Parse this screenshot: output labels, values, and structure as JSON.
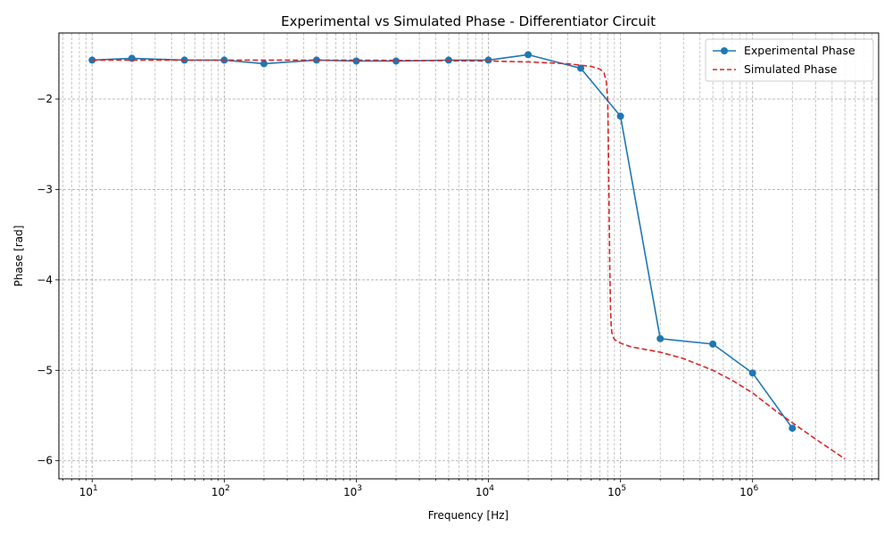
{
  "chart_data": {
    "type": "line",
    "title": "Experimental vs Simulated Phase - Differentiator Circuit",
    "xlabel": "Frequency [Hz]",
    "ylabel": "Phase [rad]",
    "x_scale": "log",
    "xlim": [
      5.6,
      9000000
    ],
    "ylim": [
      -6.2,
      -1.27
    ],
    "x_ticks": [
      {
        "value": 10,
        "base": "10",
        "exp": "1"
      },
      {
        "value": 100,
        "base": "10",
        "exp": "2"
      },
      {
        "value": 1000,
        "base": "10",
        "exp": "3"
      },
      {
        "value": 10000,
        "base": "10",
        "exp": "4"
      },
      {
        "value": 100000,
        "base": "10",
        "exp": "5"
      },
      {
        "value": 1000000,
        "base": "10",
        "exp": "6"
      }
    ],
    "y_ticks": [
      {
        "value": -2,
        "label": "−2"
      },
      {
        "value": -3,
        "label": "−3"
      },
      {
        "value": -4,
        "label": "−4"
      },
      {
        "value": -5,
        "label": "−5"
      },
      {
        "value": -6,
        "label": "−6"
      }
    ],
    "grid": "both-major-and-minor",
    "legend_position": "top-right",
    "series": [
      {
        "name": "Experimental Phase",
        "color": "#1f77b4",
        "style": "solid-with-markers",
        "x": [
          10,
          20,
          50,
          100,
          200,
          500,
          1000,
          2000,
          5000,
          10000,
          20000,
          50000,
          100000,
          200000,
          500000,
          1000000,
          2000000
        ],
        "y": [
          -1.57,
          -1.55,
          -1.57,
          -1.57,
          -1.61,
          -1.57,
          -1.58,
          -1.58,
          -1.57,
          -1.57,
          -1.51,
          -1.66,
          -2.19,
          -4.65,
          -4.71,
          -5.03,
          -5.64
        ]
      },
      {
        "name": "Simulated Phase",
        "color": "#d62728",
        "style": "dashed",
        "x": [
          10,
          100,
          1000,
          10000,
          20000,
          40000,
          60000,
          70000,
          75000,
          78000,
          80000,
          81000,
          82000,
          83000,
          84000,
          85000,
          86000,
          88000,
          90000,
          95000,
          100000,
          120000,
          200000,
          300000,
          500000,
          700000,
          1000000,
          1500000,
          2000000,
          3000000,
          5000000
        ],
        "y": [
          -1.57,
          -1.57,
          -1.57,
          -1.58,
          -1.59,
          -1.61,
          -1.64,
          -1.67,
          -1.71,
          -1.8,
          -2.0,
          -2.5,
          -3.2,
          -3.9,
          -4.3,
          -4.5,
          -4.58,
          -4.63,
          -4.66,
          -4.68,
          -4.7,
          -4.74,
          -4.8,
          -4.87,
          -5.0,
          -5.11,
          -5.25,
          -5.45,
          -5.58,
          -5.76,
          -5.98
        ]
      }
    ]
  }
}
